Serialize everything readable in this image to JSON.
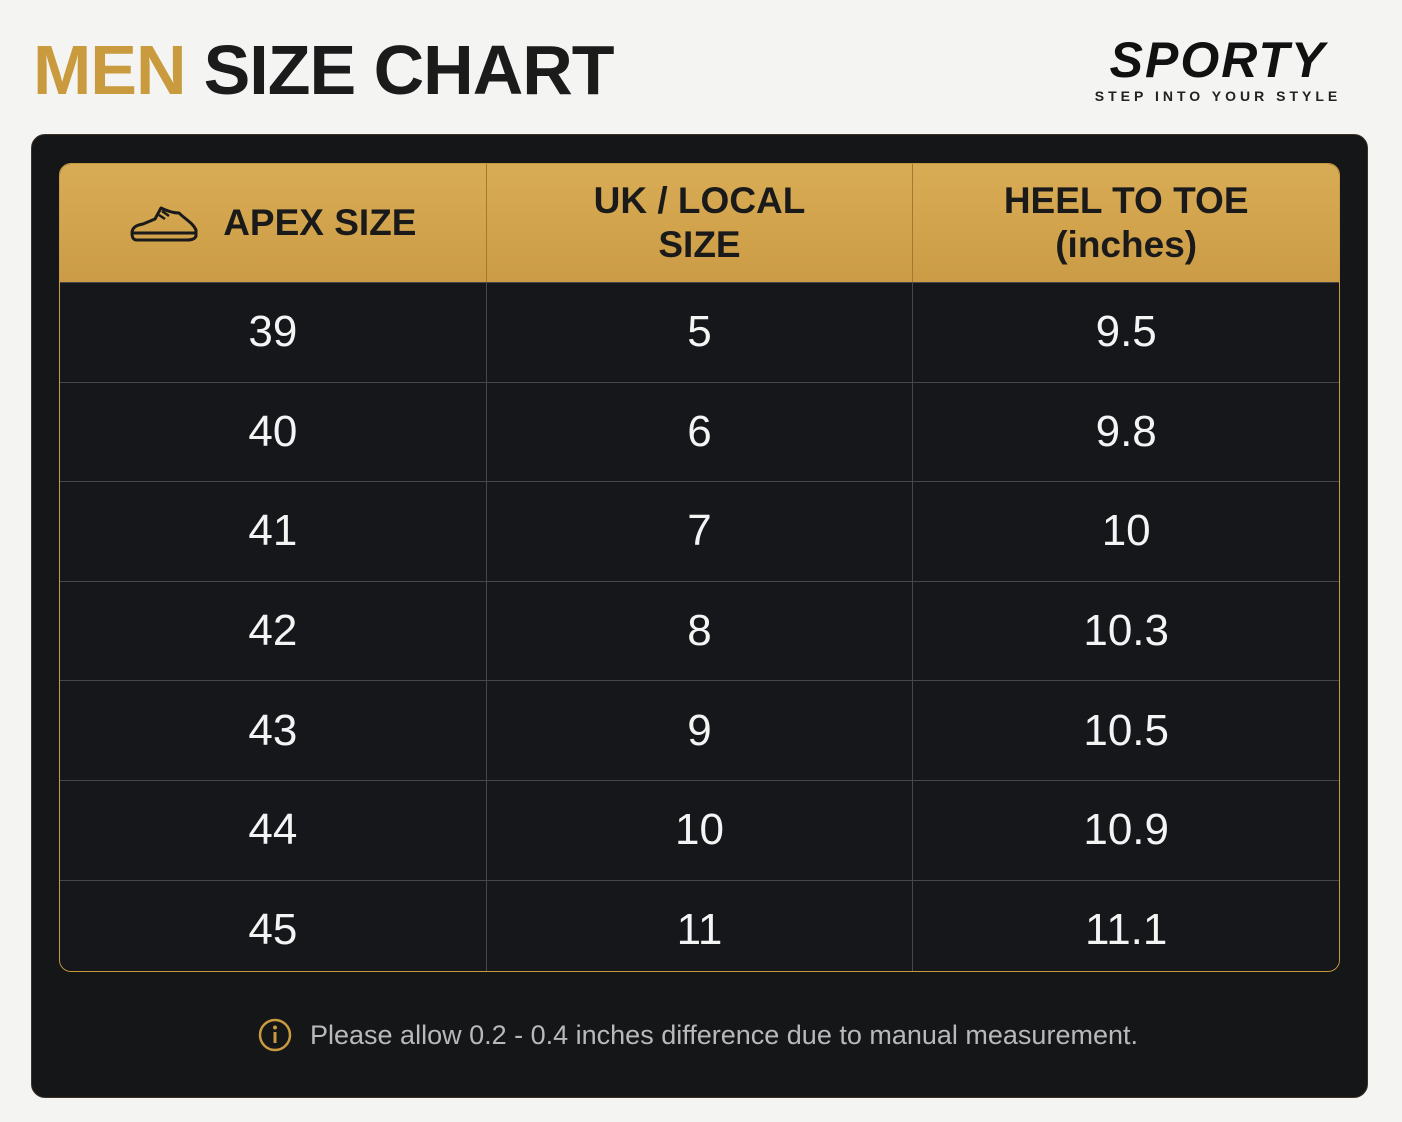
{
  "header": {
    "title_accent": "MEN",
    "title": "SIZE CHART",
    "brand": "SPORTY",
    "tagline": "STEP INTO YOUR STYLE"
  },
  "table": {
    "columns": [
      [
        "APEX SIZE"
      ],
      [
        "UK / LOCAL",
        "SIZE"
      ],
      [
        "HEEL TO TOE",
        "(inches)"
      ]
    ],
    "rows": [
      [
        39,
        5,
        9.5
      ],
      [
        40,
        6,
        9.8
      ],
      [
        41,
        7,
        10
      ],
      [
        42,
        8,
        10.3
      ],
      [
        43,
        9,
        10.5
      ],
      [
        44,
        10,
        10.9
      ],
      [
        45,
        11,
        11.1
      ]
    ]
  },
  "note": "Please allow 0.2 - 0.4 inches difference due to manual measurement."
}
